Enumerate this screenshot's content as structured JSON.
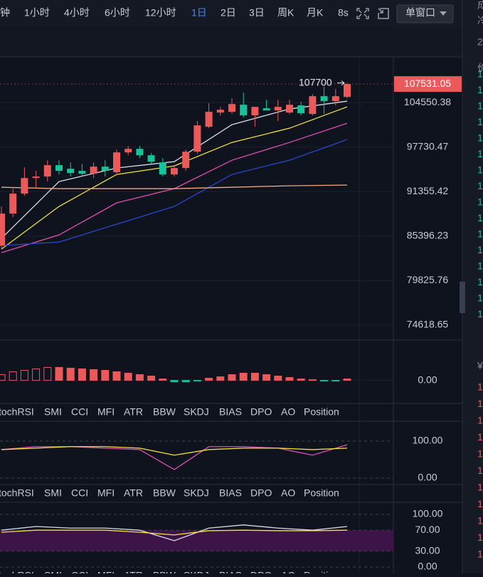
{
  "toolbar": {
    "intervals": [
      "钟",
      "1小时",
      "4小时",
      "6小时",
      "12小时",
      "1日",
      "2日",
      "3日",
      "周K",
      "月K"
    ],
    "active": 5,
    "timer": "8s",
    "window_mode": "单窗口"
  },
  "main_chart": {
    "type": "candlestick",
    "log_scale": true,
    "ylim": [
      72950,
      111800
    ],
    "yticks": [
      104550.38,
      97730.47,
      91355.42,
      85396.23,
      79825.76,
      74618.65
    ],
    "up_color": "#eb5a5a",
    "down_color": "#19c39a",
    "candles": [
      [
        84184,
        89328,
        83734,
        88366
      ],
      [
        88366,
        91764,
        87885,
        91075
      ],
      [
        91075,
        94785,
        90781,
        93258
      ],
      [
        93258,
        94273,
        91764,
        93466
      ],
      [
        93466,
        95809,
        92758,
        95090
      ],
      [
        95090,
        95809,
        93760,
        94273
      ],
      [
        94575,
        95496,
        93466,
        93967
      ],
      [
        94273,
        95295,
        93466,
        93865
      ],
      [
        93865,
        95496,
        93258,
        94882
      ],
      [
        94882,
        95809,
        93466,
        94273
      ],
      [
        94074,
        97368,
        93663,
        96949
      ],
      [
        96949,
        97894,
        96531,
        97473
      ],
      [
        97473,
        97894,
        96116,
        96531
      ],
      [
        96531,
        96845,
        95295,
        95600
      ],
      [
        95496,
        96116,
        93466,
        93760
      ],
      [
        93760,
        95090,
        93466,
        94680
      ],
      [
        94680,
        97368,
        94273,
        97054
      ],
      [
        97054,
        101664,
        96741,
        101006
      ],
      [
        100787,
        104437,
        100570,
        103097
      ],
      [
        102983,
        103876,
        102542,
        103429
      ],
      [
        103097,
        105229,
        102762,
        104325
      ],
      [
        104213,
        106143,
        102208,
        102542
      ],
      [
        102542,
        103876,
        100787,
        103876
      ],
      [
        103652,
        105002,
        103317,
        103317
      ],
      [
        103317,
        105002,
        101664,
        103876
      ],
      [
        102983,
        105002,
        102762,
        104213
      ],
      [
        104101,
        104663,
        102542,
        102873
      ],
      [
        102762,
        105911,
        102542,
        105570
      ],
      [
        105570,
        107060,
        102762,
        104776
      ],
      [
        104776,
        106713,
        104101,
        105570
      ],
      [
        105456,
        107700,
        105229,
        107531.05
      ]
    ],
    "last_price": 107531.05,
    "high_label": 107700,
    "ma_index": [
      0,
      5,
      10,
      15,
      20,
      25,
      30
    ],
    "ma_lines": [
      {
        "color": "#d8dce6",
        "values": [
          85095,
          92758,
          94680,
          95600,
          101112,
          103541,
          104776
        ]
      },
      {
        "color": "#f2e33a",
        "values": [
          83734,
          89328,
          93760,
          94982,
          98425,
          100570,
          103876
        ]
      },
      {
        "color": "#e04fb4",
        "values": [
          83285,
          85555,
          89808,
          91764,
          95809,
          98425,
          101330
        ]
      },
      {
        "color": "#2a47c9",
        "values": [
          84184,
          84634,
          86955,
          89328,
          93760,
          95809,
          98853
        ]
      },
      {
        "color": "#f0a98a",
        "values": [
          91963,
          91764,
          91764,
          91764,
          91963,
          92163,
          92265
        ]
      }
    ]
  },
  "macd": {
    "ylim": [
      -600,
      1080
    ],
    "yticks": [
      {
        "value": 0,
        "label": "0.00"
      }
    ],
    "values": [
      160,
      240,
      280,
      320,
      360,
      360,
      340,
      320,
      300,
      280,
      240,
      200,
      160,
      120,
      40,
      -40,
      -40,
      -20,
      60,
      100,
      160,
      200,
      200,
      160,
      120,
      80,
      40,
      20,
      -20,
      -20,
      40
    ]
  },
  "osc1": {
    "ylim": [
      -15.4,
      153.8
    ],
    "yticks": [
      {
        "value": 100,
        "label": "100.00"
      },
      {
        "value": 0,
        "label": "0.00"
      }
    ],
    "index": [
      0,
      3,
      6,
      9,
      12,
      15,
      18,
      21,
      24,
      27,
      30
    ],
    "series": [
      {
        "color": "#e04fb4",
        "values": [
          77,
          85,
          85,
          81,
          77,
          23,
          85,
          85,
          81,
          62,
          90
        ]
      },
      {
        "color": "#f2e33a",
        "values": [
          77,
          81,
          85,
          85,
          81,
          62,
          77,
          81,
          81,
          77,
          81
        ]
      }
    ]
  },
  "osc2": {
    "ylim": [
      -12.2,
      123
    ],
    "yticks": [
      {
        "value": 100,
        "label": "100.00"
      },
      {
        "value": 70,
        "label": "70.00"
      },
      {
        "value": 30,
        "label": "30.00"
      },
      {
        "value": 0,
        "label": "0.00"
      }
    ],
    "index": [
      0,
      3,
      6,
      9,
      12,
      15,
      18,
      21,
      24,
      27,
      30
    ],
    "series": [
      {
        "color": "#d8dce6",
        "values": [
          70,
          77,
          74,
          74,
          70,
          50,
          74,
          80,
          74,
          70,
          77
        ]
      },
      {
        "color": "#f2e33a",
        "values": [
          66,
          70,
          70,
          70,
          66,
          61,
          69,
          70,
          69,
          69,
          70
        ]
      }
    ]
  },
  "indicator_tabs": [
    "tochRSI",
    "SMI",
    "CCI",
    "MFI",
    "ATR",
    "BBW",
    "SKDJ",
    "BIAS",
    "DPO",
    "AO",
    "Position"
  ],
  "sidebar": [
    "成",
    "冷",
    "2",
    "价",
    "1",
    "1",
    "1",
    "1",
    "1",
    "1",
    "1",
    "1",
    "1",
    "1",
    "1",
    "1",
    "1",
    "1",
    "1",
    "1",
    "¥",
    "1",
    "1",
    "1",
    "1",
    "1",
    "1",
    "1",
    "1",
    "1",
    "1",
    "1"
  ]
}
